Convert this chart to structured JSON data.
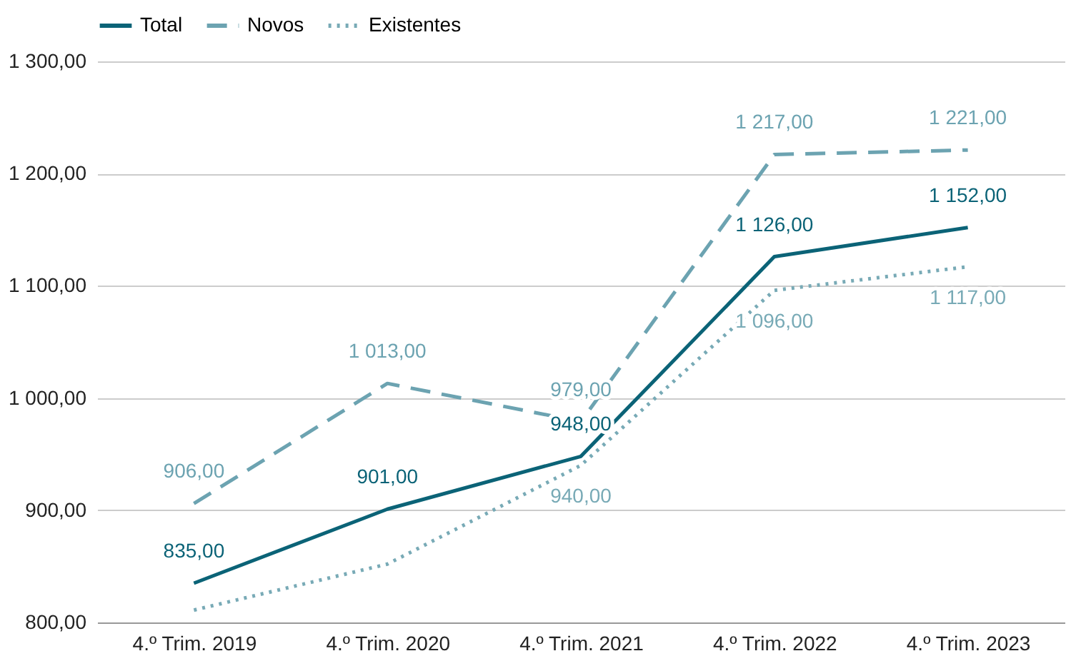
{
  "chart_data": {
    "type": "line",
    "categories": [
      "4.º Trim. 2019",
      "4.º Trim. 2020",
      "4.º Trim. 2021",
      "4.º Trim. 2022",
      "4.º Trim. 2023"
    ],
    "series": [
      {
        "name": "Total",
        "color": "#0b6377",
        "line_style": "solid",
        "values": [
          835,
          901,
          948,
          1126,
          1152
        ],
        "value_labels": [
          "835,00",
          "901,00",
          "948,00",
          "1 126,00",
          "1 152,00"
        ]
      },
      {
        "name": "Novos",
        "color": "#6ca3b1",
        "line_style": "dashed",
        "values": [
          906,
          1013,
          979,
          1217,
          1221
        ],
        "value_labels": [
          "906,00",
          "1 013,00",
          "979,00",
          "1 217,00",
          "1 221,00"
        ]
      },
      {
        "name": "Existentes",
        "color": "#78aab6",
        "line_style": "dotted",
        "values": [
          811,
          852,
          940,
          1096,
          1117
        ],
        "value_labels": [
          null,
          null,
          "940,00",
          "1 096,00",
          "1 117,00"
        ]
      }
    ],
    "ylim": [
      800,
      1300
    ],
    "yticks": [
      {
        "value": 800,
        "label": "800,00"
      },
      {
        "value": 900,
        "label": "900,00"
      },
      {
        "value": 1000,
        "label": "1 000,00"
      },
      {
        "value": 1100,
        "label": "1 100,00"
      },
      {
        "value": 1200,
        "label": "1 200,00"
      },
      {
        "value": 1300,
        "label": "1 300,00"
      }
    ],
    "grid": "y",
    "legend": "top",
    "marker": "none"
  }
}
